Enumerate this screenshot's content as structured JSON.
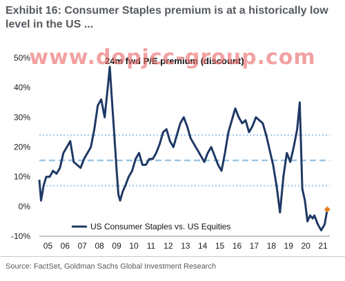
{
  "header": {
    "title": "Exhibit 16: Consumer Staples premium is at a historically low level in the US ...",
    "watermark": "www.dopjcc-group.com"
  },
  "footer": {
    "source": "Source: FactSet, Goldman Sachs Global Investment Research"
  },
  "colors": {
    "series": "#1f3864",
    "reference_lines": "#9cc6e6",
    "last_point": "#e67e22"
  },
  "chart_data": {
    "type": "line",
    "title": "24m fwd P/E premium (discount)",
    "xlabel": "",
    "ylabel": "",
    "ylim": [
      -10,
      50
    ],
    "xlim": [
      2005,
      2021.9
    ],
    "x_tick_labels": [
      "05",
      "06",
      "07",
      "08",
      "09",
      "10",
      "11",
      "12",
      "13",
      "14",
      "15",
      "16",
      "17",
      "18",
      "19",
      "20",
      "21"
    ],
    "y_tick_labels": [
      "50%",
      "40%",
      "30%",
      "20%",
      "10%",
      "0%",
      "-10%"
    ],
    "y_tick_values": [
      50,
      40,
      30,
      20,
      10,
      0,
      -10
    ],
    "reference_lines": [
      24,
      15.5,
      7
    ],
    "legend": {
      "position": "bottom-center"
    },
    "series": [
      {
        "name": "US Consumer Staples vs. US Equities",
        "x": [
          2005.0,
          2005.1,
          2005.25,
          2005.4,
          2005.6,
          2005.8,
          2006.0,
          2006.2,
          2006.4,
          2006.6,
          2006.8,
          2007.0,
          2007.2,
          2007.4,
          2007.6,
          2007.8,
          2008.0,
          2008.2,
          2008.4,
          2008.6,
          2008.8,
          2009.0,
          2009.1,
          2009.2,
          2009.35,
          2009.5,
          2009.6,
          2009.7,
          2009.85,
          2010.0,
          2010.2,
          2010.4,
          2010.6,
          2010.8,
          2011.0,
          2011.2,
          2011.4,
          2011.6,
          2011.8,
          2012.0,
          2012.2,
          2012.4,
          2012.6,
          2012.8,
          2013.0,
          2013.2,
          2013.4,
          2013.6,
          2013.8,
          2014.0,
          2014.2,
          2014.4,
          2014.6,
          2014.8,
          2015.0,
          2015.2,
          2015.4,
          2015.6,
          2015.8,
          2016.0,
          2016.2,
          2016.4,
          2016.6,
          2016.8,
          2017.0,
          2017.2,
          2017.4,
          2017.6,
          2017.8,
          2018.0,
          2018.2,
          2018.4,
          2018.6,
          2018.8,
          2019.0,
          2019.2,
          2019.4,
          2019.6,
          2019.8,
          2020.0,
          2020.15,
          2020.3,
          2020.45,
          2020.6,
          2020.75,
          2020.9,
          2021.0,
          2021.2,
          2021.4,
          2021.6,
          2021.75
        ],
        "values": [
          9,
          2,
          7,
          10,
          10,
          12,
          11,
          13,
          18,
          20,
          22,
          15,
          14,
          13,
          16,
          18,
          20,
          26,
          34,
          36,
          30,
          41,
          47,
          38,
          25,
          12,
          4,
          2,
          5,
          7,
          10,
          12,
          16,
          18,
          14,
          14,
          16,
          16,
          18,
          21,
          25,
          26,
          22,
          20,
          24,
          28,
          30,
          27,
          23,
          21,
          19,
          17,
          15,
          18,
          20,
          17,
          14,
          12,
          18,
          25,
          29,
          33,
          30,
          28,
          29,
          25,
          27,
          30,
          29,
          28,
          24,
          19,
          14,
          7,
          -2,
          10,
          18,
          15,
          20,
          26,
          35,
          6,
          2,
          -5,
          -3,
          -4,
          -3,
          -6,
          -8,
          -6,
          -1
        ]
      }
    ]
  }
}
